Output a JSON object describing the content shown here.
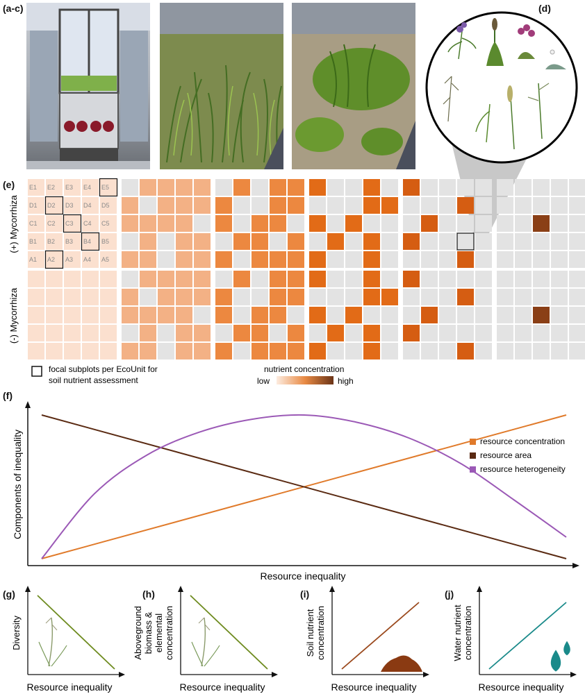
{
  "labels": {
    "abc": "(a-c)",
    "d": "(d)",
    "e": "(e)",
    "f": "(f)",
    "g": "(g)",
    "h": "(h)",
    "i": "(i)",
    "j": "(j)"
  },
  "grid": {
    "row_plus": "(+) Mycorrhiza",
    "row_minus": "(-) Mycorrhiza",
    "cell_labels": [
      [
        "E1",
        "E2",
        "E3",
        "E4",
        "E5"
      ],
      [
        "D1",
        "D2",
        "D3",
        "D4",
        "D5"
      ],
      [
        "C1",
        "C2",
        "C3",
        "C4",
        "C5"
      ],
      [
        "B1",
        "B2",
        "B3",
        "B4",
        "B5"
      ],
      [
        "A1",
        "A2",
        "A3",
        "A4",
        "A5"
      ]
    ],
    "focal_cells": [
      "E5",
      "D2",
      "C3",
      "B4",
      "A2"
    ],
    "legend_focal_line1": "focal subplots per EcoUnit for",
    "legend_focal_line2": "soil nutrient assessment",
    "legend_nutrient_title": "nutrient concentration",
    "legend_low": "low",
    "legend_high": "high",
    "colors": {
      "empty": "#e3e3e3",
      "level0": "#fbe0cf",
      "level1": "#f3b185",
      "level2": "#ec8840",
      "level3": "#e26b17",
      "level4": "#d55d12",
      "level5": "#8a3f16"
    },
    "treatments": [
      {
        "level": "level0",
        "pattern": [
          "11111",
          "11111",
          "11111",
          "11111",
          "11111"
        ]
      },
      {
        "level": "level1",
        "pattern": [
          "01111",
          "10111",
          "11110",
          "01011",
          "11011"
        ]
      },
      {
        "level": "level2",
        "pattern": [
          "01011",
          "10011",
          "10110",
          "01101",
          "10111"
        ]
      },
      {
        "level": "level3",
        "pattern": [
          "10010",
          "00011",
          "10100",
          "01010",
          "10010"
        ]
      },
      {
        "level": "level4",
        "pattern": [
          "10000",
          "00010",
          "01000",
          "10000",
          "00010"
        ]
      },
      {
        "level": "level5",
        "pattern": [
          "00000",
          "00000",
          "00100",
          "00000",
          "00000"
        ]
      }
    ]
  },
  "chart_data": {
    "type": "line",
    "xlabel": "Resource inequality",
    "ylabel": "Components of inequality",
    "series": [
      {
        "name": "resource concentration",
        "color": "#e07a2a",
        "x": [
          0,
          1
        ],
        "y": [
          0,
          1
        ]
      },
      {
        "name": "resource area",
        "color": "#5a2a12",
        "x": [
          0,
          1
        ],
        "y": [
          1,
          0
        ]
      },
      {
        "name": "resource heterogeneity",
        "color": "#9b59b6",
        "x": [
          0,
          0.1,
          0.2,
          0.3,
          0.4,
          0.5,
          0.6,
          0.7,
          0.8,
          0.9,
          1
        ],
        "y": [
          0,
          0.45,
          0.72,
          0.88,
          0.97,
          1.0,
          0.95,
          0.84,
          0.66,
          0.41,
          0.15
        ]
      }
    ],
    "legend_position": "right",
    "grid": false
  },
  "mini_charts": [
    {
      "ylabel": "Diversity",
      "xlabel": "Resource inequality",
      "color": "#6e8b1f",
      "direction": "down",
      "icon": "grass-icon"
    },
    {
      "ylabel_lines": [
        "Aboveground",
        "biomass &",
        "elemental",
        "concentration"
      ],
      "xlabel": "Resource inequality",
      "color": "#6e8b1f",
      "direction": "down",
      "icon": "grass-icon"
    },
    {
      "ylabel_lines": [
        "Soil nutrient",
        "concentration"
      ],
      "xlabel": "Resource inequality",
      "color": "#9b4a1e",
      "direction": "up",
      "icon": "soil-pile-icon"
    },
    {
      "ylabel_lines": [
        "Water nutrient",
        "concentration"
      ],
      "xlabel": "Resource inequality",
      "color": "#1a8a8a",
      "direction": "up",
      "icon": "water-drops-icon"
    }
  ]
}
